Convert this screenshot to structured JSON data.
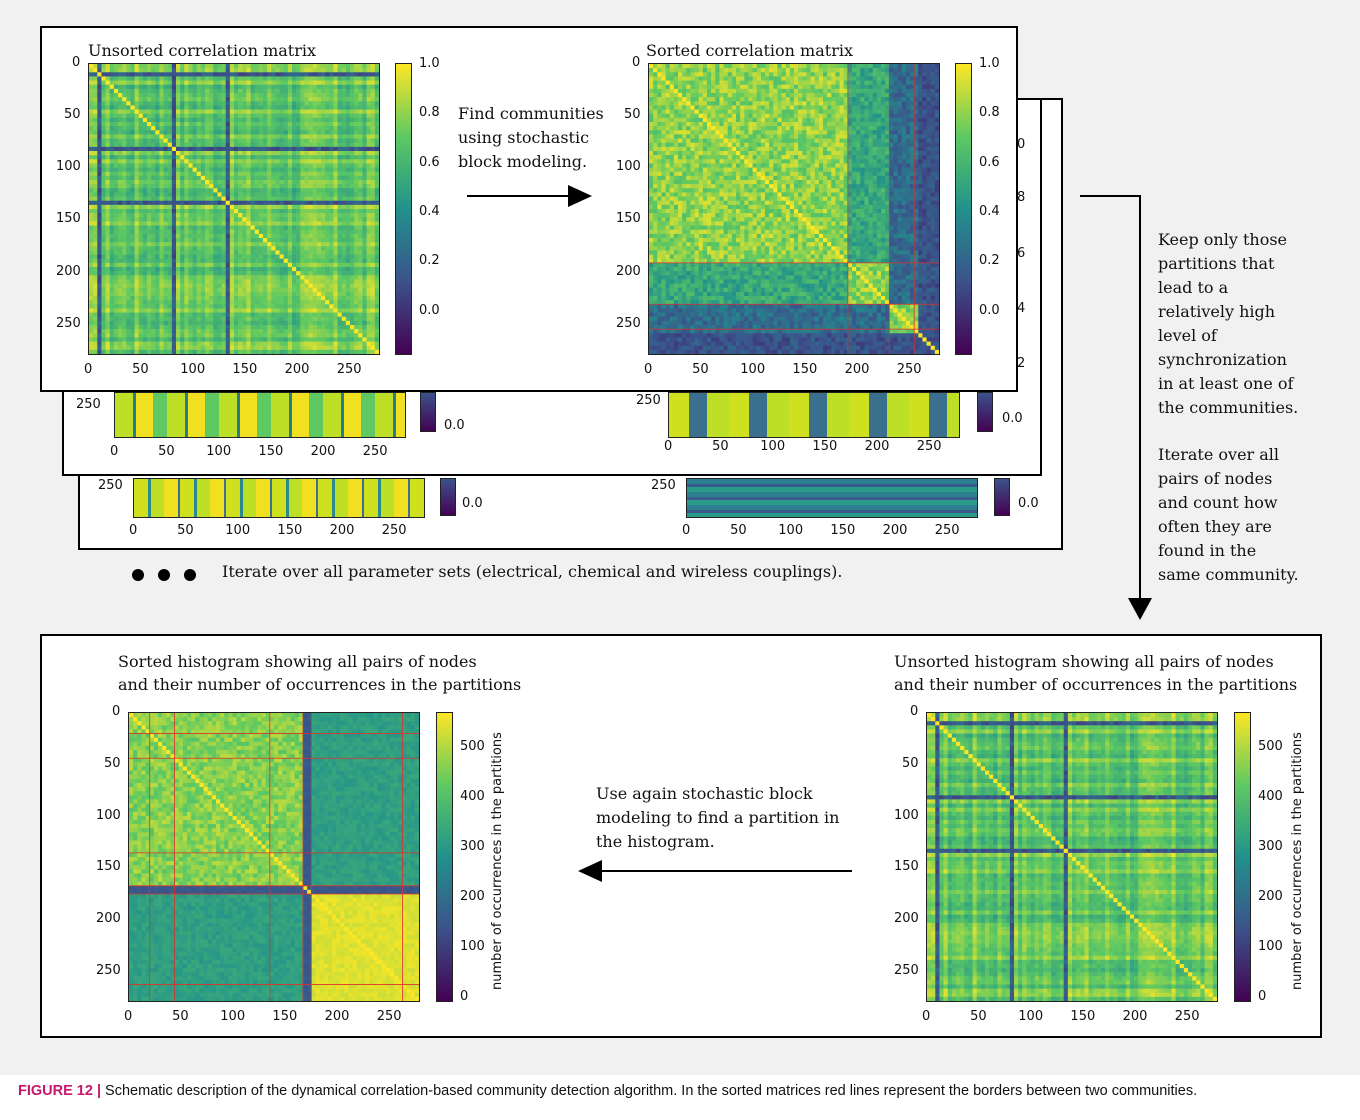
{
  "top_left": {
    "title": "Unsorted correlation matrix"
  },
  "top_right": {
    "title": "Sorted correlation matrix"
  },
  "bottom_left": {
    "title_line1": "Sorted histogram showing all pairs of nodes",
    "title_line2": "and their number of occurrences in the partitions"
  },
  "bottom_right": {
    "title_line1": "Unsorted histogram showing all pairs of nodes",
    "title_line2": "and their number of occurrences in the partitions"
  },
  "axis_ticks": [
    "0",
    "50",
    "100",
    "150",
    "200",
    "250"
  ],
  "corr_cbar_ticks": [
    "1.0",
    "0.8",
    "0.6",
    "0.4",
    "0.2",
    "0.0"
  ],
  "hist_cbar_ticks": [
    "500",
    "400",
    "300",
    "200",
    "100",
    "0"
  ],
  "hist_cbar_label": "number of occurrences in the partitions",
  "back_cbar_tick": "0.0",
  "back_partial_digits": [
    "0",
    "8",
    "6",
    "4",
    "2"
  ],
  "steps": {
    "find_communities": [
      "Find communities",
      "using stochastic",
      "block modeling."
    ],
    "keep_partitions": [
      "Keep only those",
      "partitions that",
      "lead to a",
      "relatively high",
      "level of",
      "synchronization",
      "in at least one of",
      "the communities."
    ],
    "iterate_pairs": [
      "Iterate over all",
      "pairs of nodes",
      "and count how",
      "often they are",
      "found in the",
      "same community."
    ],
    "use_again": [
      "Use again stochastic block",
      "modeling to find a partition in",
      "the histogram."
    ],
    "iterate_params": "Iterate over all parameter sets (electrical, chemical and wireless couplings)."
  },
  "caption": {
    "label": "FIGURE 12 |",
    "text": " Schematic description of the dynamical correlation-based community detection algorithm. In the sorted matrices red lines represent the borders between two communities."
  },
  "colors": {
    "viridis_low": "#440154",
    "viridis_mid": "#21918c",
    "viridis_high": "#fde725",
    "border_red": "#e0302a",
    "caption_label": "#c6176e"
  }
}
